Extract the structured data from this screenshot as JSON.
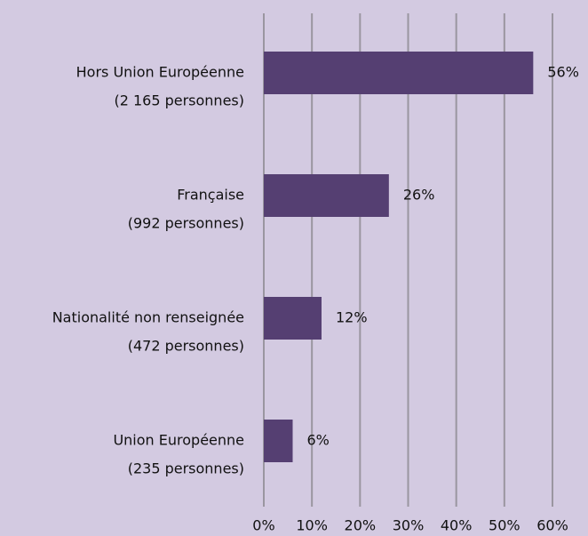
{
  "chart_data": {
    "type": "bar",
    "orientation": "horizontal",
    "categories": [
      [
        "Hors Union Européenne",
        "(2 165 personnes)"
      ],
      [
        "Française",
        "(992 personnes)"
      ],
      [
        "Nationalité non renseignée",
        "(472 personnes)"
      ],
      [
        "Union Européenne",
        "(235 personnes)"
      ]
    ],
    "values": [
      56,
      26,
      12,
      6
    ],
    "value_labels": [
      "56%",
      "26%",
      "12%",
      "6%"
    ],
    "color": "#553f72",
    "xlim": [
      0,
      60
    ],
    "xticks": [
      {
        "value": 0,
        "label": "0%"
      },
      {
        "value": 10,
        "label": "10%"
      },
      {
        "value": 20,
        "label": "20%"
      },
      {
        "value": 30,
        "label": "30%"
      },
      {
        "value": 40,
        "label": "40%"
      },
      {
        "value": 50,
        "label": "50%"
      },
      {
        "value": 60,
        "label": "60%"
      }
    ],
    "grid": true
  }
}
